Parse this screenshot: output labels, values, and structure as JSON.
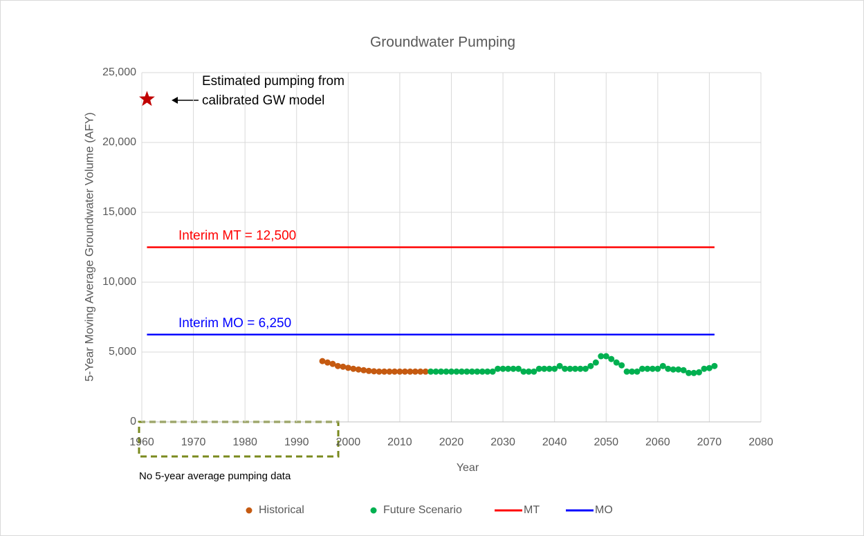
{
  "chart_data": {
    "type": "scatter-line",
    "title": "Groundwater Pumping",
    "xlabel": "Year",
    "ylabel": "5-Year Moving Average Groundwater Volume (AFY)",
    "xlim": [
      1960,
      2080
    ],
    "xticks": [
      1960,
      1970,
      1980,
      1990,
      2000,
      2010,
      2020,
      2030,
      2040,
      2050,
      2060,
      2070,
      2080
    ],
    "ylim": [
      0,
      25000
    ],
    "yticks": [
      0,
      {
        "value": 5000,
        "label": "5,000"
      },
      {
        "value": 10000,
        "label": "10,000"
      },
      {
        "value": 15000,
        "label": "15,000"
      },
      {
        "value": 20000,
        "label": "20,000"
      },
      {
        "value": 25000,
        "label": "25,000"
      }
    ],
    "grid": true,
    "legend": "bottom",
    "series": [
      {
        "name": "Historical",
        "color": "#c55a11",
        "mode": "markers",
        "x": [
          1995,
          1996,
          1997,
          1998,
          1999,
          2000,
          2001,
          2002,
          2003,
          2004,
          2005,
          2006,
          2007,
          2008,
          2009,
          2010,
          2011,
          2012,
          2013,
          2014,
          2015
        ],
        "values": [
          4350,
          4250,
          4150,
          4000,
          3950,
          3870,
          3800,
          3750,
          3700,
          3650,
          3620,
          3600,
          3600,
          3600,
          3600,
          3600,
          3600,
          3600,
          3600,
          3600,
          3600
        ]
      },
      {
        "name": "Future Scenario",
        "color": "#00b050",
        "mode": "markers",
        "x": [
          2016,
          2017,
          2018,
          2019,
          2020,
          2021,
          2022,
          2023,
          2024,
          2025,
          2026,
          2027,
          2028,
          2029,
          2030,
          2031,
          2032,
          2033,
          2034,
          2035,
          2036,
          2037,
          2038,
          2039,
          2040,
          2041,
          2042,
          2043,
          2044,
          2045,
          2046,
          2047,
          2048,
          2049,
          2050,
          2051,
          2052,
          2053,
          2054,
          2055,
          2056,
          2057,
          2058,
          2059,
          2060,
          2061,
          2062,
          2063,
          2064,
          2065,
          2066,
          2067,
          2068,
          2069,
          2070,
          2071
        ],
        "values": [
          3600,
          3600,
          3600,
          3600,
          3600,
          3600,
          3600,
          3600,
          3600,
          3600,
          3600,
          3600,
          3600,
          3800,
          3800,
          3800,
          3800,
          3800,
          3600,
          3600,
          3600,
          3800,
          3800,
          3800,
          3800,
          4000,
          3800,
          3800,
          3800,
          3800,
          3800,
          4000,
          4250,
          4700,
          4700,
          4500,
          4250,
          4050,
          3600,
          3600,
          3600,
          3800,
          3800,
          3800,
          3800,
          4000,
          3800,
          3750,
          3750,
          3700,
          3500,
          3500,
          3550,
          3800,
          3850,
          4000
        ]
      },
      {
        "name": "MT",
        "color": "#ff0000",
        "mode": "line",
        "x": [
          1961,
          2071
        ],
        "values": [
          12500,
          12500
        ]
      },
      {
        "name": "MO",
        "color": "#0000ff",
        "mode": "line",
        "x": [
          1961,
          2071
        ],
        "values": [
          6250,
          6250
        ]
      }
    ],
    "star": {
      "x": 1961,
      "y": 23100,
      "color": "#c00000"
    },
    "annotations": {
      "star_note": [
        "Estimated pumping from",
        "calibrated GW model"
      ],
      "mt": "Interim MT = 12,500",
      "mo": "Interim MO = 6,250",
      "no_data": "No 5-year average pumping data"
    }
  }
}
